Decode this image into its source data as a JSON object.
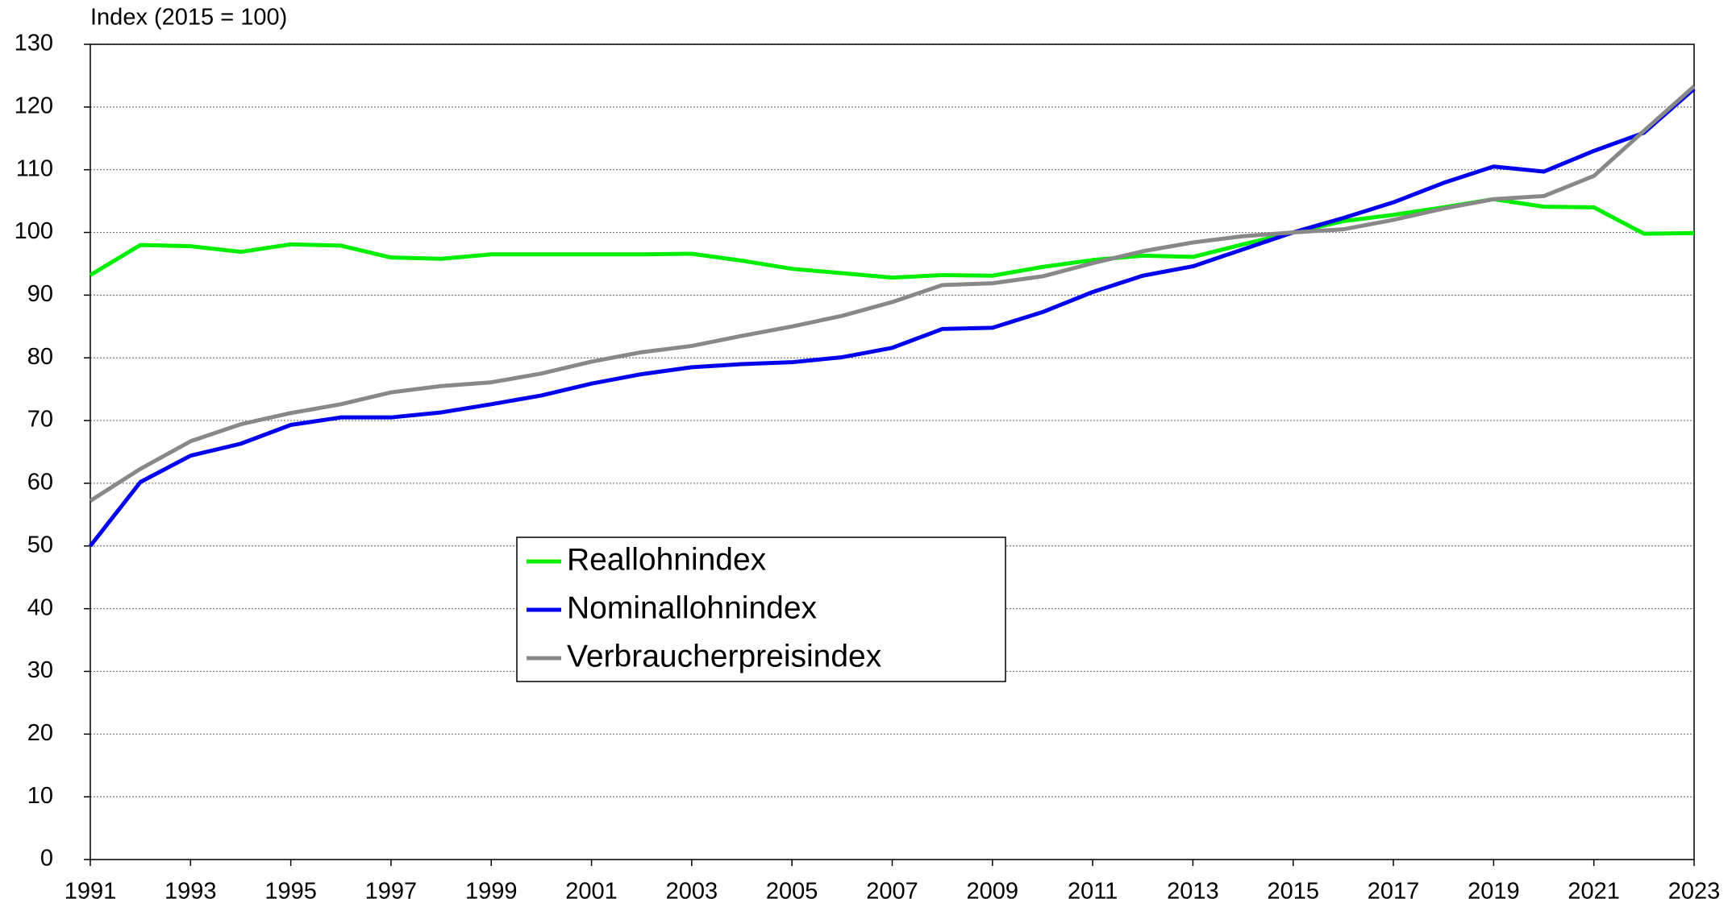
{
  "chart_data": {
    "type": "line",
    "title": "Index (2015 = 100)",
    "x": [
      1991,
      1992,
      1993,
      1994,
      1995,
      1996,
      1997,
      1998,
      1999,
      2000,
      2001,
      2002,
      2003,
      2004,
      2005,
      2006,
      2007,
      2008,
      2009,
      2010,
      2011,
      2012,
      2013,
      2014,
      2015,
      2016,
      2017,
      2018,
      2019,
      2020,
      2021,
      2022,
      2023
    ],
    "series": [
      {
        "name": "Reallohnindex",
        "color": "#00ee00",
        "values": [
          93.2,
          98.0,
          97.8,
          96.9,
          98.1,
          97.9,
          96.0,
          95.8,
          96.5,
          96.5,
          96.5,
          96.5,
          96.6,
          95.5,
          94.2,
          93.5,
          92.8,
          93.2,
          93.1,
          94.5,
          95.6,
          96.3,
          96.1,
          98.1,
          100,
          101.8,
          102.8,
          104.0,
          105.3,
          104.1,
          104.0,
          99.8,
          99.9
        ]
      },
      {
        "name": "Nominallohnindex",
        "color": "#0000ee",
        "values": [
          50.0,
          60.2,
          64.4,
          66.3,
          69.3,
          70.5,
          70.5,
          71.3,
          72.6,
          74.0,
          75.9,
          77.4,
          78.5,
          79.0,
          79.3,
          80.1,
          81.6,
          84.6,
          84.8,
          87.3,
          90.5,
          93.1,
          94.6,
          97.3,
          100,
          102.3,
          104.8,
          107.9,
          110.5,
          109.7,
          113.0,
          115.9,
          122.9
        ]
      },
      {
        "name": "Verbraucherpreisindex",
        "color": "#888888",
        "values": [
          57.2,
          62.3,
          66.7,
          69.4,
          71.2,
          72.6,
          74.5,
          75.5,
          76.1,
          77.5,
          79.4,
          80.9,
          81.9,
          83.5,
          85.0,
          86.7,
          88.9,
          91.6,
          91.9,
          93.0,
          95.1,
          97.0,
          98.4,
          99.4,
          100,
          100.5,
          102.0,
          103.8,
          105.3,
          105.8,
          109.0,
          116.2,
          123.3
        ]
      }
    ],
    "xlim": [
      1991,
      2023
    ],
    "xticks": [
      1991,
      1993,
      1995,
      1997,
      1999,
      2001,
      2003,
      2005,
      2007,
      2009,
      2011,
      2013,
      2015,
      2017,
      2019,
      2021,
      2023
    ],
    "ylim": [
      0,
      130
    ],
    "yticks": [
      0,
      10,
      20,
      30,
      40,
      50,
      60,
      70,
      80,
      90,
      100,
      110,
      120,
      130
    ],
    "grid": true,
    "legend": "center"
  }
}
